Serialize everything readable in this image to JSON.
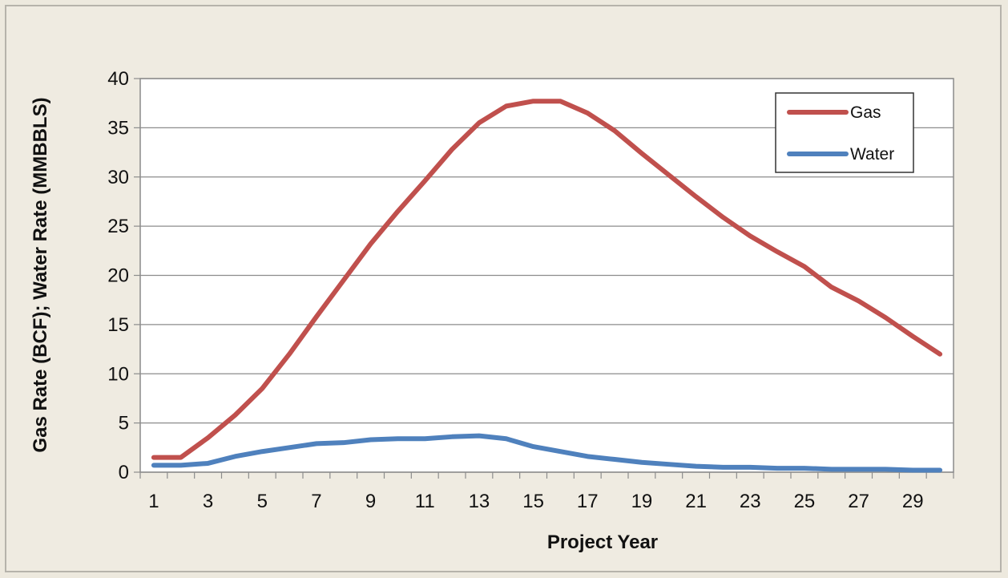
{
  "chart_data": {
    "type": "line",
    "title": "",
    "xlabel": "Project Year",
    "ylabel": "Gas Rate (BCF); Water Rate (MMBBLS)",
    "x": [
      1,
      2,
      3,
      4,
      5,
      6,
      7,
      8,
      9,
      10,
      11,
      12,
      13,
      14,
      15,
      16,
      17,
      18,
      19,
      20,
      21,
      22,
      23,
      24,
      25,
      26,
      27,
      28,
      29,
      30
    ],
    "x_tick_labels": [
      "1",
      "3",
      "5",
      "7",
      "9",
      "11",
      "13",
      "15",
      "17",
      "19",
      "21",
      "23",
      "25",
      "27",
      "29"
    ],
    "x_tick_values": [
      1,
      3,
      5,
      7,
      9,
      11,
      13,
      15,
      17,
      19,
      21,
      23,
      25,
      27,
      29
    ],
    "y_tick_labels": [
      "0",
      "5",
      "10",
      "15",
      "20",
      "25",
      "30",
      "35",
      "40"
    ],
    "y_tick_values": [
      0,
      5,
      10,
      15,
      20,
      25,
      30,
      35,
      40
    ],
    "ylim": [
      0,
      40
    ],
    "xlim": [
      0.5,
      30.5
    ],
    "grid": true,
    "legend_position": "top-right",
    "series": [
      {
        "name": "Gas",
        "color": "#c0504d",
        "values": [
          1.5,
          1.5,
          3.5,
          5.8,
          8.5,
          12.0,
          15.8,
          19.5,
          23.2,
          26.5,
          29.6,
          32.8,
          35.5,
          37.2,
          37.7,
          37.7,
          36.5,
          34.7,
          32.4,
          30.2,
          28.0,
          25.9,
          24.0,
          22.4,
          20.9,
          18.8,
          17.4,
          15.7,
          13.8,
          12.0
        ]
      },
      {
        "name": "Water",
        "color": "#4f81bd",
        "values": [
          0.7,
          0.7,
          0.9,
          1.6,
          2.1,
          2.5,
          2.9,
          3.0,
          3.3,
          3.4,
          3.4,
          3.6,
          3.7,
          3.4,
          2.6,
          2.1,
          1.6,
          1.3,
          1.0,
          0.8,
          0.6,
          0.5,
          0.5,
          0.4,
          0.4,
          0.3,
          0.3,
          0.3,
          0.2,
          0.2
        ]
      }
    ]
  }
}
